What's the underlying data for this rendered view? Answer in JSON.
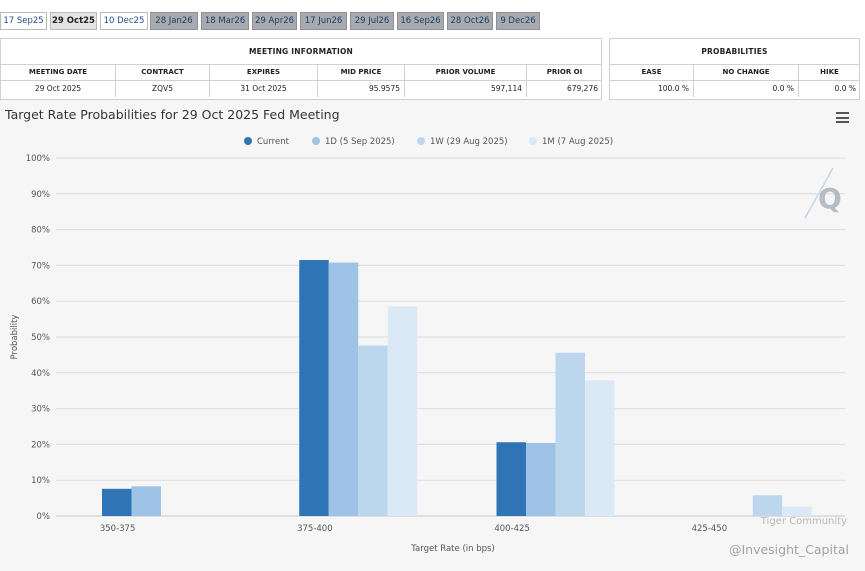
{
  "tabs": [
    {
      "label": "17 Sep25",
      "state": "normal"
    },
    {
      "label": "29 Oct25",
      "state": "active"
    },
    {
      "label": "10 Dec25",
      "state": "normal"
    },
    {
      "label": "28 Jan26",
      "state": "disabled"
    },
    {
      "label": "18 Mar26",
      "state": "disabled"
    },
    {
      "label": "29 Apr26",
      "state": "disabled"
    },
    {
      "label": "17 Jun26",
      "state": "disabled"
    },
    {
      "label": "29 Jul26",
      "state": "disabled"
    },
    {
      "label": "16 Sep26",
      "state": "disabled"
    },
    {
      "label": "28 Oct26",
      "state": "disabled"
    },
    {
      "label": "9 Dec26",
      "state": "disabled"
    }
  ],
  "meeting_info": {
    "header": "MEETING INFORMATION",
    "columns": [
      "MEETING DATE",
      "CONTRACT",
      "EXPIRES",
      "MID PRICE",
      "PRIOR VOLUME",
      "PRIOR OI"
    ],
    "values": [
      "29 Oct 2025",
      "ZQV5",
      "31 Oct 2025",
      "95.9575",
      "597,114",
      "679,276"
    ]
  },
  "probabilities": {
    "header": "PROBABILITIES",
    "columns": [
      "EASE",
      "NO CHANGE",
      "HIKE"
    ],
    "values": [
      "100.0 %",
      "0.0 %",
      "0.0 %"
    ]
  },
  "chart_data": {
    "type": "bar",
    "title": "Target Rate Probabilities for 29 Oct 2025 Fed Meeting",
    "xlabel": "Target Rate (in bps)",
    "ylabel": "Probability",
    "ylim": [
      0,
      100
    ],
    "yticks": [
      "0%",
      "10%",
      "20%",
      "30%",
      "40%",
      "50%",
      "60%",
      "70%",
      "80%",
      "90%",
      "100%"
    ],
    "categories": [
      "350-375",
      "375-400",
      "400-425",
      "425-450"
    ],
    "legend_position": "top-center",
    "series": [
      {
        "name": "Current",
        "color": "#2f74b5",
        "values": [
          7.6,
          71.5,
          20.6,
          0
        ]
      },
      {
        "name": "1D (5 Sep 2025)",
        "color": "#9ec3e6",
        "values": [
          8.3,
          70.8,
          20.4,
          0
        ]
      },
      {
        "name": "1W (29 Aug 2025)",
        "color": "#bcd6ee",
        "values": [
          0,
          47.6,
          45.6,
          5.8
        ]
      },
      {
        "name": "1M (7 Aug 2025)",
        "color": "#dbe9f6",
        "values": [
          0,
          58.6,
          37.9,
          2.6
        ]
      }
    ]
  },
  "watermarks": {
    "community": "Tiger Community",
    "handle": "@Invesight_Capital"
  }
}
